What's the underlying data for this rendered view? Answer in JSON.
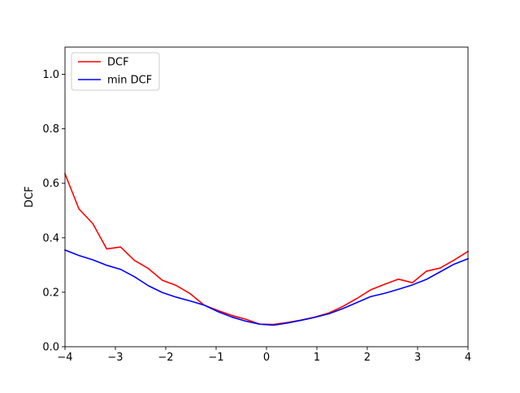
{
  "chart_data": {
    "type": "line",
    "title": "",
    "xlabel": "",
    "ylabel": "DCF",
    "xlim": [
      -4,
      4
    ],
    "ylim": [
      0,
      1.1
    ],
    "xticks": [
      -4,
      -3,
      -2,
      -1,
      0,
      1,
      2,
      3,
      4
    ],
    "yticks": [
      0.0,
      0.2,
      0.4,
      0.6,
      0.8,
      1.0
    ],
    "xtick_labels": [
      "−4",
      "−3",
      "−2",
      "−1",
      "0",
      "1",
      "2",
      "3",
      "4"
    ],
    "ytick_labels": [
      "0.0",
      "0.2",
      "0.4",
      "0.6",
      "0.8",
      "1.0"
    ],
    "grid": false,
    "legend_position": "upper left",
    "x": [
      -4.0,
      -3.724,
      -3.448,
      -3.172,
      -2.897,
      -2.621,
      -2.345,
      -2.069,
      -1.793,
      -1.517,
      -1.241,
      -0.966,
      -0.69,
      -0.414,
      -0.138,
      0.138,
      0.414,
      0.69,
      0.966,
      1.241,
      1.517,
      1.793,
      2.069,
      2.345,
      2.621,
      2.897,
      3.172,
      3.448,
      3.724,
      4.0
    ],
    "series": [
      {
        "name": "DCF",
        "color": "#ff0000",
        "values": [
          0.635,
          0.506,
          0.452,
          0.359,
          0.366,
          0.317,
          0.287,
          0.244,
          0.225,
          0.195,
          0.153,
          0.133,
          0.115,
          0.101,
          0.083,
          0.082,
          0.089,
          0.098,
          0.109,
          0.124,
          0.148,
          0.177,
          0.209,
          0.229,
          0.248,
          0.235,
          0.277,
          0.289,
          0.318,
          0.35
        ]
      },
      {
        "name": "min DCF",
        "color": "#0000ff",
        "values": [
          0.355,
          0.335,
          0.319,
          0.299,
          0.284,
          0.257,
          0.224,
          0.199,
          0.182,
          0.168,
          0.153,
          0.129,
          0.109,
          0.094,
          0.083,
          0.079,
          0.087,
          0.097,
          0.108,
          0.121,
          0.14,
          0.162,
          0.184,
          0.196,
          0.211,
          0.227,
          0.247,
          0.275,
          0.303,
          0.323
        ]
      }
    ]
  }
}
